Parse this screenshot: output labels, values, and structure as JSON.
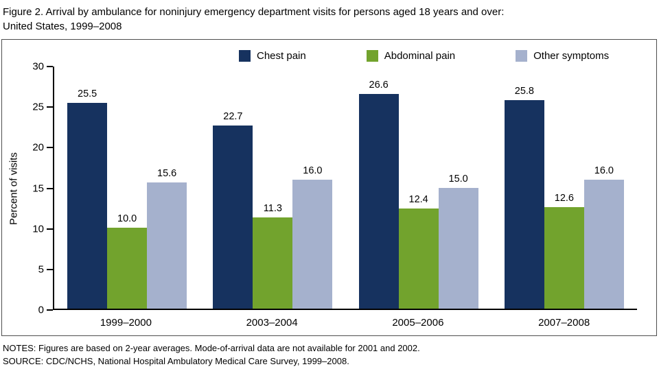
{
  "title": {
    "line1": "Figure 2. Arrival by ambulance for noninjury emergency department visits for persons aged 18 years and over:",
    "line2": "United States, 1999–2008"
  },
  "notes": {
    "line1": "NOTES: Figures are based on 2-year averages. Mode-of-arrival data are not available for 2001 and 2002.",
    "line2": "SOURCE: CDC/NCHS, National Hospital Ambulatory Medical Care Survey, 1999–2008."
  },
  "chart_data": {
    "type": "bar",
    "categories": [
      "1999–2000",
      "2003–2004",
      "2005–2006",
      "2007–2008"
    ],
    "series": [
      {
        "name": "Chest pain",
        "color": "#16325f",
        "values": [
          25.5,
          22.7,
          26.6,
          25.8
        ]
      },
      {
        "name": "Abdominal pain",
        "color": "#72a32d",
        "values": [
          10.0,
          11.3,
          12.4,
          12.6
        ]
      },
      {
        "name": "Other symptoms",
        "color": "#a5b1cd",
        "values": [
          15.6,
          16.0,
          15.0,
          16.0
        ]
      }
    ],
    "xlabel": "",
    "ylabel": "Percent of visits",
    "ylim": [
      0,
      30
    ],
    "y_ticks": [
      0,
      5,
      10,
      15,
      20,
      25,
      30
    ],
    "grid": false,
    "legend_position": "top",
    "value_label_decimals": 1
  }
}
